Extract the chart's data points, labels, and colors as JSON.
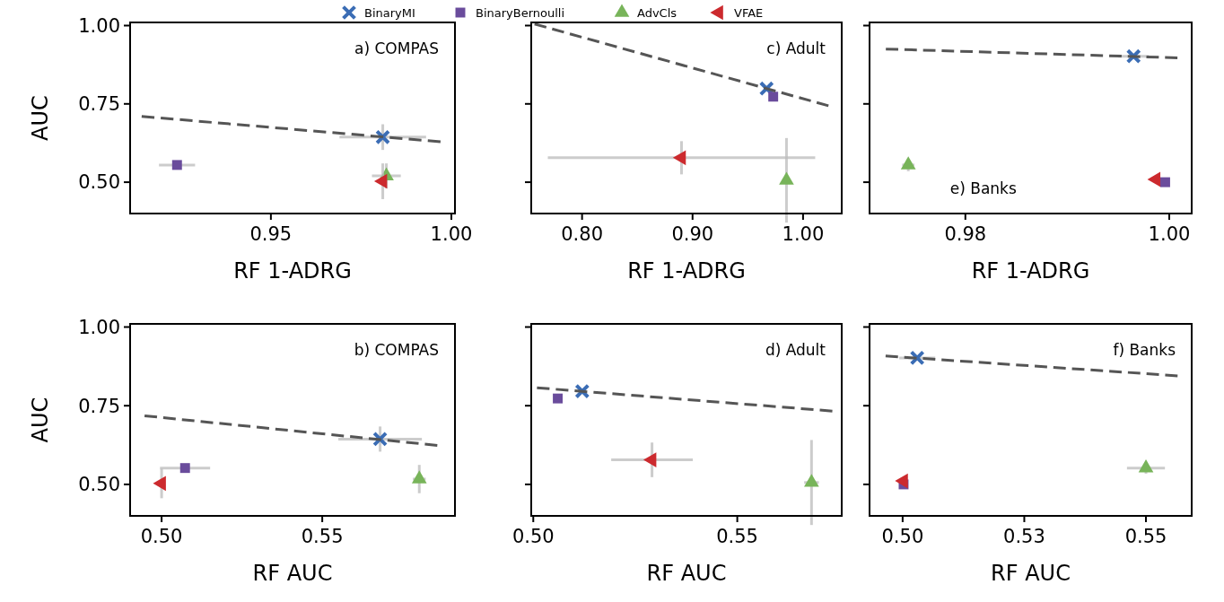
{
  "chart_data": [
    {
      "type": "scatter",
      "xlabel": "RF 1-ADRG",
      "ylabel": "AUC",
      "annotations": [
        "a) COMPAS"
      ],
      "legend": "top",
      "xlim": [
        0.911,
        1.001
      ],
      "ylim": [
        0.4,
        1.01
      ],
      "xticks": [
        0.95,
        {
          "value": 1,
          "label": "1.00"
        }
      ],
      "yticks": [
        {
          "value": 0.5,
          "label": "0.50"
        },
        0.75,
        {
          "value": 1,
          "label": "1.00"
        }
      ],
      "series": [
        {
          "name": "BinaryMI",
          "color": "#3b6db5",
          "marker": "cross",
          "x": [
            0.981
          ],
          "values": [
            0.644
          ],
          "errors": [
            0.041
          ],
          "xerrors": [
            0.012
          ]
        },
        {
          "name": "BinaryBernoulli",
          "color": "#6a4c9c",
          "marker": "square",
          "x": [
            0.924
          ],
          "values": [
            0.555
          ],
          "errors": [
            null
          ],
          "xerrors": [
            0.005
          ]
        },
        {
          "name": "AdvCls",
          "color": "#78b45a",
          "marker": "triangle",
          "x": [
            0.982
          ],
          "values": [
            0.52
          ],
          "errors": [
            0.04
          ],
          "xerrors": [
            0.004
          ]
        },
        {
          "name": "VFAE",
          "color": "#cc2a2e",
          "marker": "triangle-left",
          "x": [
            0.981
          ],
          "values": [
            0.503
          ],
          "errors": [
            0.057
          ],
          "xerrors": [
            null
          ]
        },
        {
          "type": "line",
          "color": "#555555",
          "line_style": "dashed",
          "marker": "none",
          "x": [
            0.9142,
            0.997
          ],
          "values": [
            0.71,
            0.629
          ]
        }
      ]
    },
    {
      "type": "scatter",
      "xlabel": "RF 1-ADRG",
      "tick_labels": "x",
      "annotations": [
        "c) Adult"
      ],
      "xlim": [
        0.754,
        1.035
      ],
      "ylim": [
        0.4,
        1.01
      ],
      "xticks": [
        {
          "value": 0.8,
          "label": "0.80"
        },
        {
          "value": 0.9,
          "label": "0.90"
        },
        {
          "value": 1,
          "label": "1.00"
        }
      ],
      "yticks": [
        {
          "value": 0.5,
          "label": null
        },
        {
          "value": 0.75,
          "label": null
        },
        {
          "value": 1,
          "label": null
        }
      ],
      "series": [
        {
          "color": "#3b6db5",
          "marker": "cross",
          "x": [
            0.967
          ],
          "values": [
            0.799
          ],
          "errors": [
            null
          ],
          "xerrors": [
            null
          ]
        },
        {
          "color": "#6a4c9c",
          "marker": "square",
          "x": [
            0.973
          ],
          "values": [
            0.773
          ],
          "errors": [
            null
          ],
          "xerrors": [
            null
          ]
        },
        {
          "color": "#78b45a",
          "marker": "triangle",
          "x": [
            0.985
          ],
          "values": [
            0.506
          ],
          "errors": [
            0.135
          ],
          "xerrors": [
            null
          ]
        },
        {
          "color": "#cc2a2e",
          "marker": "triangle-left",
          "x": [
            0.89
          ],
          "values": [
            0.578
          ],
          "errors": [
            0.053
          ],
          "xerrors": [
            0.121
          ]
        },
        {
          "type": "line",
          "color": "#555555",
          "line_style": "dashed",
          "marker": "none",
          "x": [
            0.757,
            1.023
          ],
          "values": [
            1.005,
            0.744
          ]
        }
      ]
    },
    {
      "type": "scatter",
      "xlabel": "RF 1-ADRG",
      "tick_labels": "x",
      "annotations": [
        "e) Banks"
      ],
      "xlim": [
        0.9706,
        1.0022
      ],
      "ylim": [
        0.4,
        1.01
      ],
      "xticks": [
        0.98,
        {
          "value": 1,
          "label": "1.00"
        }
      ],
      "yticks": [
        {
          "value": 0.5,
          "label": null
        },
        {
          "value": 0.75,
          "label": null
        },
        {
          "value": 1,
          "label": null
        }
      ],
      "series": [
        {
          "color": "#3b6db5",
          "marker": "cross",
          "x": [
            0.9965
          ],
          "values": [
            0.902
          ],
          "errors": [
            null
          ],
          "xerrors": [
            0.0015
          ]
        },
        {
          "color": "#6a4c9c",
          "marker": "square",
          "x": [
            0.9996
          ],
          "values": [
            0.5
          ],
          "errors": [
            null
          ],
          "xerrors": [
            null
          ]
        },
        {
          "color": "#78b45a",
          "marker": "triangle",
          "x": [
            0.9744
          ],
          "values": [
            0.555
          ],
          "errors": [
            0.02
          ],
          "xerrors": [
            0.0006
          ]
        },
        {
          "color": "#cc2a2e",
          "marker": "triangle-left",
          "x": [
            0.9987
          ],
          "values": [
            0.509
          ],
          "errors": [
            null
          ],
          "xerrors": [
            null
          ]
        },
        {
          "type": "line",
          "color": "#555555",
          "line_style": "dashed",
          "marker": "none",
          "x": [
            0.9722,
            1.0008
          ],
          "values": [
            0.925,
            0.897
          ]
        }
      ]
    },
    {
      "type": "scatter",
      "xlabel": "RF AUC",
      "ylabel": "AUC",
      "annotations": [
        "b) COMPAS"
      ],
      "xlim": [
        0.4902,
        0.5913
      ],
      "ylim": [
        0.4,
        1.01
      ],
      "xticks": [
        {
          "value": 0.5,
          "label": "0.50"
        },
        0.55
      ],
      "yticks": [
        {
          "value": 0.5,
          "label": "0.50"
        },
        0.75,
        {
          "value": 1,
          "label": "1.00"
        }
      ],
      "series": [
        {
          "color": "#3b6db5",
          "marker": "cross",
          "x": [
            0.568
          ],
          "values": [
            0.644
          ],
          "errors": [
            0.04
          ],
          "xerrors": [
            0.013
          ]
        },
        {
          "color": "#6a4c9c",
          "marker": "square",
          "x": [
            0.5073
          ],
          "values": [
            0.552
          ],
          "errors": [
            null
          ],
          "xerrors": [
            0.0078
          ]
        },
        {
          "color": "#78b45a",
          "marker": "triangle",
          "x": [
            0.5802
          ],
          "values": [
            0.517
          ],
          "errors": [
            0.045
          ],
          "xerrors": [
            0.002
          ]
        },
        {
          "color": "#cc2a2e",
          "marker": "triangle-left",
          "x": [
            0.5
          ],
          "values": [
            0.503
          ],
          "errors": [
            0.047
          ],
          "xerrors": [
            null
          ]
        },
        {
          "type": "line",
          "color": "#555555",
          "line_style": "dashed",
          "marker": "none",
          "x": [
            0.4947,
            0.5858
          ],
          "values": [
            0.718,
            0.624
          ]
        }
      ]
    },
    {
      "type": "scatter",
      "xlabel": "RF AUC",
      "tick_labels": "x",
      "annotations": [
        "d) Adult"
      ],
      "xlim": [
        0.4995,
        0.5756
      ],
      "ylim": [
        0.4,
        1.01
      ],
      "xticks": [
        {
          "value": 0.5,
          "label": "0.50"
        },
        0.55
      ],
      "yticks": [
        {
          "value": 0.5,
          "label": null
        },
        {
          "value": 0.75,
          "label": null
        },
        {
          "value": 1,
          "label": null
        }
      ],
      "series": [
        {
          "color": "#3b6db5",
          "marker": "cross",
          "x": [
            0.512
          ],
          "values": [
            0.796
          ],
          "errors": [
            null
          ],
          "xerrors": [
            null
          ]
        },
        {
          "color": "#6a4c9c",
          "marker": "square",
          "x": [
            0.506
          ],
          "values": [
            0.773
          ],
          "errors": [
            null
          ],
          "xerrors": [
            null
          ]
        },
        {
          "color": "#78b45a",
          "marker": "triangle",
          "x": [
            0.5682
          ],
          "values": [
            0.506
          ],
          "errors": [
            0.135
          ],
          "xerrors": [
            0.0018
          ]
        },
        {
          "color": "#cc2a2e",
          "marker": "triangle-left",
          "x": [
            0.5291
          ],
          "values": [
            0.578
          ],
          "errors": [
            0.055
          ],
          "xerrors": [
            0.01
          ]
        },
        {
          "type": "line",
          "color": "#555555",
          "line_style": "dashed",
          "marker": "none",
          "x": [
            0.5009,
            0.5733
          ],
          "values": [
            0.807,
            0.733
          ]
        }
      ]
    },
    {
      "type": "scatter",
      "xlabel": "RF AUC",
      "tick_labels": "x",
      "annotations": [
        "f) Banks"
      ],
      "xlim": [
        0.4932,
        0.5594
      ],
      "ylim": [
        0.4,
        1.01
      ],
      "xticks": [
        {
          "value": 0.5,
          "label": "0.50"
        },
        {
          "value": 0.525,
          "label": "0.53"
        },
        0.55
      ],
      "yticks": [
        {
          "value": 0.5,
          "label": null
        },
        {
          "value": 0.75,
          "label": null
        },
        {
          "value": 1,
          "label": null
        }
      ],
      "series": [
        {
          "color": "#3b6db5",
          "marker": "cross",
          "x": [
            0.503
          ],
          "values": [
            0.902
          ],
          "errors": [
            null
          ],
          "xerrors": [
            0.0037
          ]
        },
        {
          "color": "#6a4c9c",
          "marker": "square",
          "x": [
            0.5002
          ],
          "values": [
            0.5
          ],
          "errors": [
            null
          ],
          "xerrors": [
            null
          ]
        },
        {
          "color": "#78b45a",
          "marker": "triangle",
          "x": [
            0.55
          ],
          "values": [
            0.552
          ],
          "errors": [
            0.018
          ],
          "xerrors": [
            0.0039
          ]
        },
        {
          "color": "#cc2a2e",
          "marker": "triangle-left",
          "x": [
            0.5002
          ],
          "values": [
            0.511
          ],
          "errors": [
            null
          ],
          "xerrors": [
            null
          ]
        },
        {
          "type": "line",
          "color": "#555555",
          "line_style": "dashed",
          "marker": "none",
          "x": [
            0.4965,
            0.5565
          ],
          "values": [
            0.908,
            0.845
          ]
        }
      ]
    }
  ]
}
